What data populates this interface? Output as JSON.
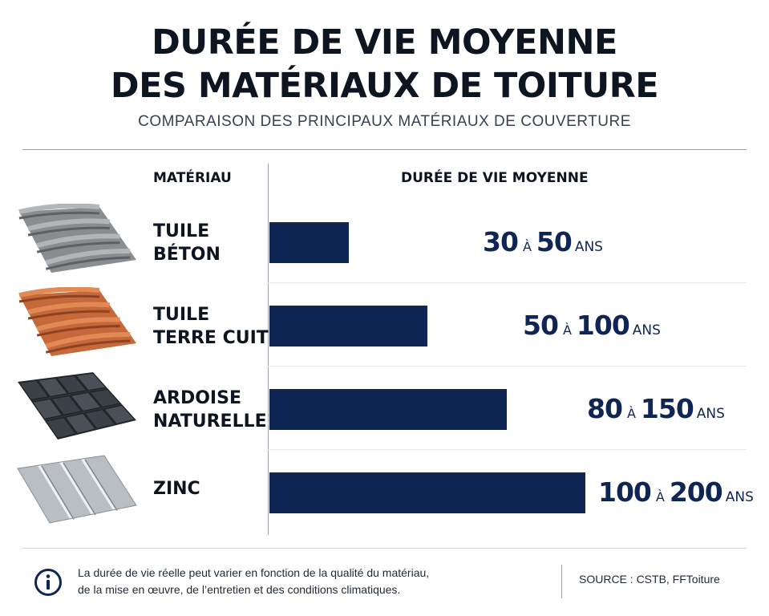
{
  "title_lines": [
    "DURÉE DE VIE MOYENNE",
    "DES MATÉRIAUX DE TOITURE"
  ],
  "subtitle": "COMPARAISON DES PRINCIPAUX MATÉRIAUX DE COUVERTURE",
  "headers": {
    "material": "MATÉRIAU",
    "duration": "DURÉE DE VIE MOYENNE"
  },
  "colors": {
    "bar": "#0f2554",
    "text": "#0d1521"
  },
  "chart_data": {
    "type": "bar",
    "orientation": "horizontal",
    "categories": [
      "TUILE BÉTON",
      "TUILE TERRE CUITE",
      "ARDOISE NATURELLE",
      "ZINC"
    ],
    "label_lines": [
      [
        "TUILE",
        "BÉTON"
      ],
      [
        "TUILE",
        "TERRE CUITE"
      ],
      [
        "ARDOISE",
        "NATURELLE"
      ],
      [
        "ZINC"
      ]
    ],
    "values": [
      50,
      100,
      150,
      200
    ],
    "ranges": [
      [
        30,
        50
      ],
      [
        50,
        100
      ],
      [
        80,
        150
      ],
      [
        100,
        200
      ]
    ],
    "range_separator": "À",
    "unit": "ANS",
    "xlim": [
      0,
      200
    ],
    "icons": [
      "concrete-tile-icon",
      "terracotta-tile-icon",
      "slate-icon",
      "zinc-sheet-icon"
    ]
  },
  "footer": {
    "icon": "info-icon",
    "note_lines": [
      "La durée de vie réelle peut varier en fonction de la qualité du matériau,",
      "de la mise en œuvre, de l’entretien et des conditions climatiques."
    ],
    "source": "SOURCE : CSTB, FFToiture"
  }
}
